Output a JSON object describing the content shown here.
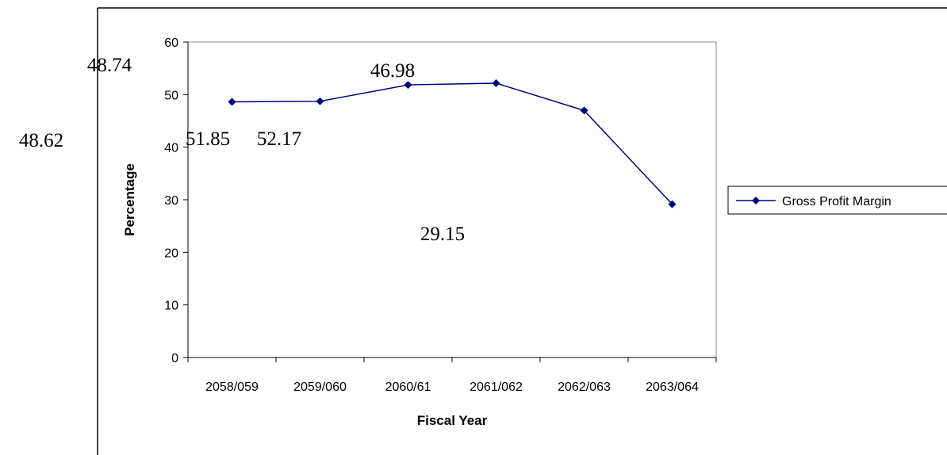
{
  "chart_data": {
    "type": "line",
    "x_label": "Fiscal Year",
    "y_label": "Percentage",
    "categories": [
      "2058/059",
      "2059/060",
      "2060/61",
      "2061/062",
      "2062/063",
      "2063/064"
    ],
    "series": [
      {
        "name": "Gross Profit Margin",
        "color": "#000080",
        "values": [
          48.62,
          48.74,
          51.85,
          52.17,
          46.98,
          29.15
        ]
      }
    ],
    "ylim": [
      0,
      60
    ],
    "yticks": [
      0,
      10,
      20,
      30,
      40,
      50,
      60
    ],
    "grid": false,
    "legend": "right"
  }
}
